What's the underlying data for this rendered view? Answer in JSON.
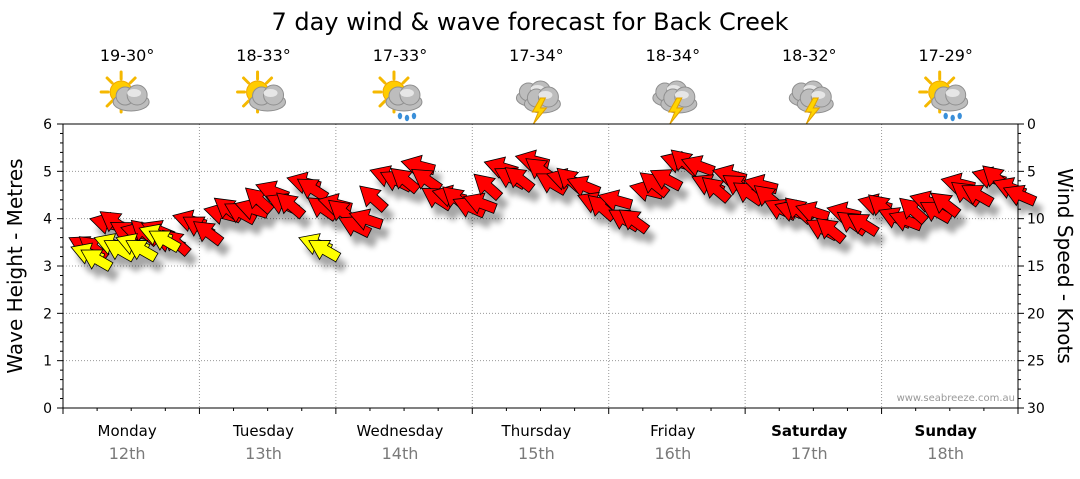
{
  "chart_data": {
    "type": "line",
    "title": "7 day wind & wave forecast for Back Creek",
    "ylabel_left": "Wave Height - Metres",
    "ylabel_right": "Wind Speed - Knots",
    "ylim_left": [
      0,
      6
    ],
    "ylim_right": [
      30,
      0
    ],
    "yticks_left": [
      "0",
      "1",
      "2",
      "3",
      "4",
      "5",
      "6"
    ],
    "yticks_right": [
      "0",
      "5",
      "10",
      "15",
      "20",
      "25",
      "30"
    ],
    "grid": true,
    "watermark": "www.seabreeze.com.au",
    "days": [
      {
        "day": "Monday",
        "date": "12th",
        "temp": "19-30°",
        "icon": "partly-cloudy-icon",
        "bold": false
      },
      {
        "day": "Tuesday",
        "date": "13th",
        "temp": "18-33°",
        "icon": "partly-cloudy-icon",
        "bold": false
      },
      {
        "day": "Wednesday",
        "date": "14th",
        "temp": "17-33°",
        "icon": "sun-showers-icon",
        "bold": false
      },
      {
        "day": "Thursday",
        "date": "15th",
        "temp": "17-34°",
        "icon": "thunderstorm-icon",
        "bold": false
      },
      {
        "day": "Friday",
        "date": "16th",
        "temp": "18-34°",
        "icon": "thunderstorm-icon",
        "bold": false
      },
      {
        "day": "Saturday",
        "date": "17th",
        "temp": "18-32°",
        "icon": "thunderstorm-icon",
        "bold": true
      },
      {
        "day": "Sunday",
        "date": "18th",
        "temp": "17-29°",
        "icon": "sun-showers-icon",
        "bold": true
      }
    ],
    "wind_series": {
      "x_day": [
        0.0,
        0.17,
        0.33,
        0.5,
        0.67,
        0.83,
        1.0,
        1.17,
        1.33,
        1.5,
        1.67,
        1.83,
        2.0,
        2.17,
        2.33,
        2.5,
        2.67,
        2.83,
        3.0,
        3.17,
        3.33,
        3.5,
        3.67,
        3.83,
        4.0,
        4.17,
        4.33,
        4.5,
        4.67,
        4.83,
        5.0,
        5.17,
        5.33,
        5.5,
        5.67,
        5.83,
        6.0,
        6.17,
        6.33,
        6.5,
        6.67,
        6.83,
        7.0
      ],
      "knots": [
        12,
        10,
        10,
        11,
        11,
        10,
        9,
        8,
        7,
        7,
        6,
        8,
        10,
        6,
        4,
        5,
        7,
        8,
        5,
        4,
        4,
        5,
        6,
        8,
        9,
        6,
        3,
        4,
        6,
        5,
        7,
        8,
        9,
        10,
        9,
        8,
        9,
        8,
        7,
        6,
        5,
        6,
        7
      ],
      "gust_yellow_knots": [
        13,
        12,
        12,
        11,
        null,
        null,
        null,
        null,
        null,
        null,
        12,
        null,
        null,
        null,
        null,
        null,
        null,
        null,
        null,
        null,
        null,
        null,
        null,
        null,
        null,
        null,
        null,
        null,
        null,
        null,
        null,
        null,
        null,
        null,
        null,
        null,
        null,
        null,
        null,
        null,
        null,
        null,
        null
      ],
      "direction": "southeast",
      "colors": {
        "strong": "#ff0000",
        "light": "#ffff00"
      }
    }
  }
}
